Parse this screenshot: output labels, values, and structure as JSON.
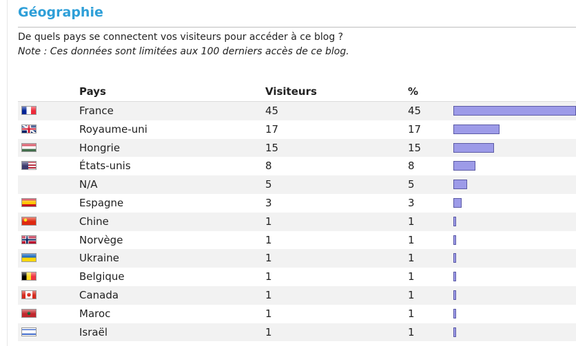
{
  "section": {
    "title": "Géographie",
    "question": "De quels pays se connectent vos visiteurs pour accéder à ce blog ?",
    "note": "Note : Ces données sont limitées aux 100 derniers accès de ce blog."
  },
  "table": {
    "headers": {
      "country": "Pays",
      "visitors": "Visiteurs",
      "percent": "%"
    },
    "bar_color": "#9d9be8",
    "rows": [
      {
        "flag": "france-flag-icon",
        "country": "France",
        "visitors": "45",
        "percent": "45"
      },
      {
        "flag": "united-kingdom-flag-icon",
        "country": "Royaume-uni",
        "visitors": "17",
        "percent": "17"
      },
      {
        "flag": "hungary-flag-icon",
        "country": "Hongrie",
        "visitors": "15",
        "percent": "15"
      },
      {
        "flag": "united-states-flag-icon",
        "country": "États-unis",
        "visitors": "8",
        "percent": "8"
      },
      {
        "flag": "",
        "country": "N/A",
        "visitors": "5",
        "percent": "5"
      },
      {
        "flag": "spain-flag-icon",
        "country": "Espagne",
        "visitors": "3",
        "percent": "3"
      },
      {
        "flag": "china-flag-icon",
        "country": "Chine",
        "visitors": "1",
        "percent": "1"
      },
      {
        "flag": "norway-flag-icon",
        "country": "Norvège",
        "visitors": "1",
        "percent": "1"
      },
      {
        "flag": "ukraine-flag-icon",
        "country": "Ukraine",
        "visitors": "1",
        "percent": "1"
      },
      {
        "flag": "belgium-flag-icon",
        "country": "Belgique",
        "visitors": "1",
        "percent": "1"
      },
      {
        "flag": "canada-flag-icon",
        "country": "Canada",
        "visitors": "1",
        "percent": "1"
      },
      {
        "flag": "morocco-flag-icon",
        "country": "Maroc",
        "visitors": "1",
        "percent": "1"
      },
      {
        "flag": "israel-flag-icon",
        "country": "Israël",
        "visitors": "1",
        "percent": "1"
      }
    ]
  }
}
